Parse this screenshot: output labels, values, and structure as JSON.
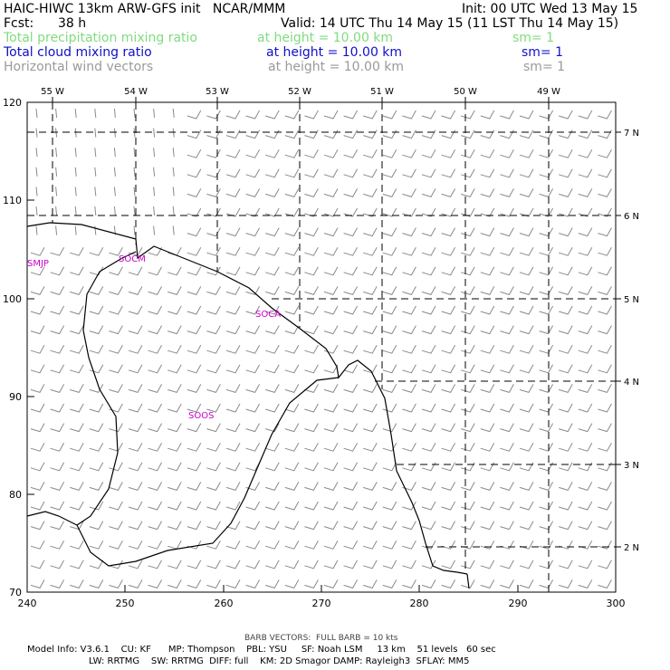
{
  "header": {
    "title": "HAIC-HIWC 13km ARW-GFS init   NCAR/MMM",
    "init": "Init: 00 UTC Wed 13 May 15",
    "fcst_label": "Fcst:",
    "fcst_value": "38 h",
    "valid": "Valid: 14 UTC Thu 14 May 15 (11 LST Thu 14 May 15)"
  },
  "fields": [
    {
      "name": "Total precipitation mixing ratio",
      "height": "at height = 10.00 km",
      "sm": "sm= 1",
      "color": "#7fdc7f"
    },
    {
      "name": "Total cloud mixing ratio",
      "height": "at height = 10.00 km",
      "sm": "sm= 1",
      "color": "#1010c8"
    },
    {
      "name": "Horizontal wind vectors",
      "height": "at height = 10.00 km",
      "sm": "sm= 1",
      "color": "#9a9a9a"
    }
  ],
  "map": {
    "x_ticks": [
      "240",
      "250",
      "260",
      "270",
      "280",
      "290",
      "300"
    ],
    "y_ticks": [
      "70",
      "80",
      "90",
      "100",
      "110",
      "120"
    ],
    "lon_labels": [
      "55 W",
      "54 W",
      "53 W",
      "52 W",
      "51 W",
      "50 W",
      "49 W"
    ],
    "lat_labels": [
      "7 N",
      "6 N",
      "5 N",
      "4 N",
      "3 N",
      "2 N"
    ],
    "stations": [
      {
        "id": "SMJP"
      },
      {
        "id": "SOCA"
      },
      {
        "id": "SOCM"
      },
      {
        "id": "SOOS"
      }
    ],
    "station_color": "#cc00cc",
    "barb_color": "#8a8a8a"
  },
  "footer": {
    "barb_note": "BARB VECTORS:  FULL BARB = 10 kts",
    "line1": "Model Info: V3.6.1    CU: KF      MP: Thompson    PBL: YSU     SF: Noah LSM     13 km    51 levels   60 sec",
    "line2": "LW: RRTMG    SW: RRTMG  DIFF: full    KM: 2D Smagor DAMP: Rayleigh3  SFLAY: MM5"
  }
}
